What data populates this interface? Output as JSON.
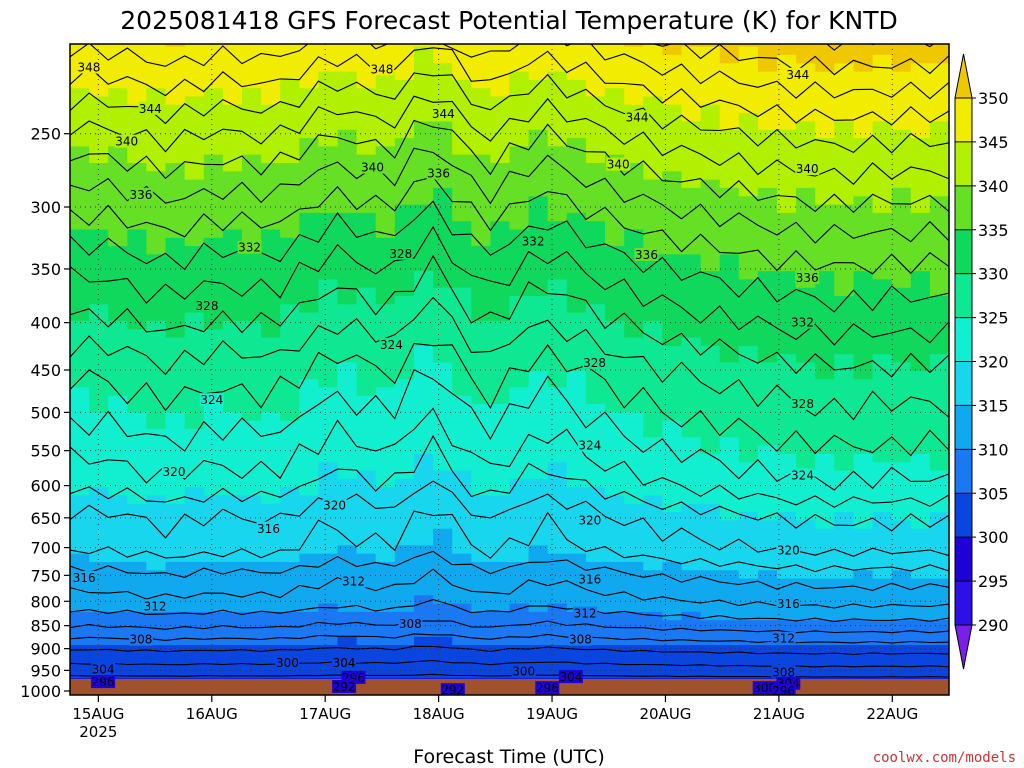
{
  "chart_data": {
    "type": "heatmap",
    "title": "2025081418 GFS Forecast Potential Temperature (K) for KNTD",
    "xlabel": "Forecast Time (UTC)",
    "ylabel": "",
    "x_ticks": [
      {
        "label": "15AUG",
        "sub": "2025"
      },
      {
        "label": "16AUG",
        "sub": ""
      },
      {
        "label": "17AUG",
        "sub": ""
      },
      {
        "label": "18AUG",
        "sub": ""
      },
      {
        "label": "19AUG",
        "sub": ""
      },
      {
        "label": "20AUG",
        "sub": ""
      },
      {
        "label": "21AUG",
        "sub": ""
      },
      {
        "label": "22AUG",
        "sub": ""
      }
    ],
    "xlim_hours": [
      -6,
      180
    ],
    "y_ticks": [
      250,
      300,
      350,
      400,
      450,
      500,
      550,
      600,
      650,
      700,
      750,
      800,
      850,
      900,
      950,
      1000
    ],
    "ylim": [
      1010,
      200
    ],
    "y_scale": "log",
    "colorbar": {
      "levels": [
        290,
        295,
        300,
        305,
        310,
        315,
        320,
        325,
        330,
        335,
        340,
        345,
        350
      ],
      "colors": [
        "#7a1fe6",
        "#2d10e8",
        "#1f00d8",
        "#0a45e0",
        "#1a78f2",
        "#10a8ee",
        "#18d6ee",
        "#12efd0",
        "#0ee892",
        "#10d85c",
        "#66e024",
        "#b0f000",
        "#f2ec00",
        "#f0c800"
      ],
      "extend": "both"
    },
    "ground_color": "#a0522d",
    "contour_profile": {
      "pressure": [
        1000,
        950,
        900,
        850,
        800,
        750,
        700,
        650,
        600,
        550,
        500,
        450,
        400,
        350,
        300,
        250,
        200
      ],
      "theta": [
        297,
        301,
        304,
        308,
        311,
        313,
        316,
        317,
        320,
        322,
        324,
        326,
        329,
        332,
        336,
        341,
        348
      ]
    },
    "anomalies": [
      {
        "hour": 1,
        "amp": 0.5
      },
      {
        "hour": 15,
        "amp": 1.6
      },
      {
        "hour": 25,
        "amp": 0.8
      },
      {
        "hour": 37,
        "amp": 1.2
      },
      {
        "hour": 50,
        "amp": -1.0
      },
      {
        "hour": 62,
        "amp": 0.2
      },
      {
        "hour": 70,
        "amp": -2.4
      },
      {
        "hour": 82,
        "amp": 1.3
      },
      {
        "hour": 94,
        "amp": -1.2
      },
      {
        "hour": 108,
        "amp": 0.8
      },
      {
        "hour": 120,
        "amp": 2.0
      },
      {
        "hour": 132,
        "amp": 2.7
      },
      {
        "hour": 144,
        "amp": 3.4
      },
      {
        "hour": 156,
        "amp": 3.8
      },
      {
        "hour": 170,
        "amp": 3.6
      }
    ],
    "contour_labels": [
      {
        "text": "348",
        "hour": -2,
        "p": 212
      },
      {
        "text": "348",
        "hour": 60,
        "p": 213
      },
      {
        "text": "344",
        "hour": 148,
        "p": 216
      },
      {
        "text": "344",
        "hour": 11,
        "p": 235
      },
      {
        "text": "344",
        "hour": 73,
        "p": 238
      },
      {
        "text": "344",
        "hour": 114,
        "p": 240
      },
      {
        "text": "340",
        "hour": 6,
        "p": 255
      },
      {
        "text": "340",
        "hour": 58,
        "p": 272
      },
      {
        "text": "336",
        "hour": 72,
        "p": 276
      },
      {
        "text": "340",
        "hour": 110,
        "p": 270
      },
      {
        "text": "340",
        "hour": 150,
        "p": 273
      },
      {
        "text": "336",
        "hour": 9,
        "p": 291
      },
      {
        "text": "332",
        "hour": 32,
        "p": 332
      },
      {
        "text": "328",
        "hour": 64,
        "p": 337
      },
      {
        "text": "332",
        "hour": 92,
        "p": 327
      },
      {
        "text": "336",
        "hour": 116,
        "p": 338
      },
      {
        "text": "336",
        "hour": 150,
        "p": 358
      },
      {
        "text": "328",
        "hour": 23,
        "p": 384
      },
      {
        "text": "332",
        "hour": 149,
        "p": 400
      },
      {
        "text": "324",
        "hour": 62,
        "p": 423
      },
      {
        "text": "328",
        "hour": 105,
        "p": 442
      },
      {
        "text": "324",
        "hour": 24,
        "p": 485
      },
      {
        "text": "328",
        "hour": 149,
        "p": 490
      },
      {
        "text": "324",
        "hour": 104,
        "p": 543
      },
      {
        "text": "324",
        "hour": 149,
        "p": 585
      },
      {
        "text": "320",
        "hour": 16,
        "p": 580
      },
      {
        "text": "320",
        "hour": 50,
        "p": 630
      },
      {
        "text": "320",
        "hour": 104,
        "p": 654
      },
      {
        "text": "316",
        "hour": 36,
        "p": 668
      },
      {
        "text": "320",
        "hour": 146,
        "p": 705
      },
      {
        "text": "316",
        "hour": -3,
        "p": 755
      },
      {
        "text": "316",
        "hour": 104,
        "p": 758
      },
      {
        "text": "312",
        "hour": 54,
        "p": 762
      },
      {
        "text": "316",
        "hour": 146,
        "p": 805
      },
      {
        "text": "312",
        "hour": 12,
        "p": 810
      },
      {
        "text": "312",
        "hour": 103,
        "p": 825
      },
      {
        "text": "308",
        "hour": 66,
        "p": 847
      },
      {
        "text": "308",
        "hour": 9,
        "p": 880
      },
      {
        "text": "308",
        "hour": 102,
        "p": 880
      },
      {
        "text": "312",
        "hour": 145,
        "p": 878
      },
      {
        "text": "300",
        "hour": 40,
        "p": 933
      },
      {
        "text": "304",
        "hour": 52,
        "p": 933
      },
      {
        "text": "304",
        "hour": 1,
        "p": 948
      },
      {
        "text": "300",
        "hour": 90,
        "p": 953
      },
      {
        "text": "304",
        "hour": 100,
        "p": 966
      },
      {
        "text": "308",
        "hour": 145,
        "p": 955
      },
      {
        "text": "296",
        "hour": 54,
        "p": 968
      },
      {
        "text": "296",
        "hour": 1,
        "p": 978
      },
      {
        "text": "292",
        "hour": 52,
        "p": 990
      },
      {
        "text": "292",
        "hour": 75,
        "p": 998
      },
      {
        "text": "296",
        "hour": 95,
        "p": 993
      },
      {
        "text": "304",
        "hour": 146,
        "p": 982
      },
      {
        "text": "300",
        "hour": 141,
        "p": 993
      },
      {
        "text": "296",
        "hour": 145,
        "p": 1000
      }
    ]
  },
  "footer": {
    "credit": "coolwx.com/models"
  }
}
